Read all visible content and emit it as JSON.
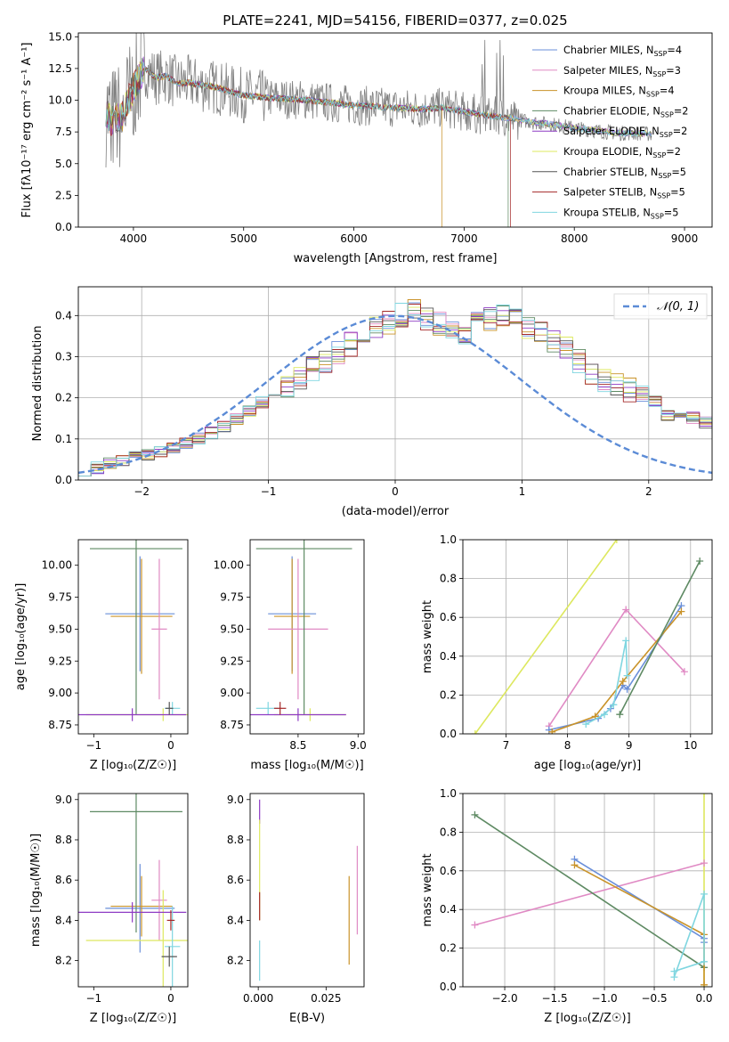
{
  "figure_title": "PLATE=2241, MJD=54156, FIBERID=0377, z=0.025",
  "series_colors": [
    "#6a8fd9",
    "#e08ac4",
    "#c9932a",
    "#5e8a63",
    "#8e3bc4",
    "#dde85f",
    "#555555",
    "#a52a2a",
    "#7fd6e0"
  ],
  "chart_data": [
    {
      "id": "spectrum",
      "type": "line",
      "title": "PLATE=2241, MJD=54156, FIBERID=0377, z=0.025",
      "xlabel": "wavelength [Angstrom, rest frame]",
      "ylabel": "Flux [fλ10⁻¹⁷ erg cm⁻² s⁻¹ A⁻¹]",
      "xlim": [
        3500,
        9250
      ],
      "ylim": [
        0,
        15.3
      ],
      "xticks": [
        4000,
        5000,
        6000,
        7000,
        8000,
        9000
      ],
      "yticks": [
        0.0,
        2.5,
        5.0,
        7.5,
        10.0,
        12.5,
        15.0
      ],
      "grid": false,
      "legend": "top-right",
      "data_color": "#808080",
      "legend_entries": [
        {
          "label": "Chabrier MILES, N",
          "sub": "SSP",
          "suffix": "=4",
          "color": "#6a8fd9"
        },
        {
          "label": "Salpeter MILES, N",
          "sub": "SSP",
          "suffix": "=3",
          "color": "#e08ac4"
        },
        {
          "label": "Kroupa MILES, N",
          "sub": "SSP",
          "suffix": "=4",
          "color": "#c9932a"
        },
        {
          "label": "Chabrier ELODIE, N",
          "sub": "SSP",
          "suffix": "=2",
          "color": "#5e8a63"
        },
        {
          "label": "Salpeter ELODIE, N",
          "sub": "SSP",
          "suffix": "=2",
          "color": "#8e3bc4"
        },
        {
          "label": "Kroupa ELODIE, N",
          "sub": "SSP",
          "suffix": "=2",
          "color": "#dde85f"
        },
        {
          "label": "Chabrier STELIB, N",
          "sub": "SSP",
          "suffix": "=5",
          "color": "#555555"
        },
        {
          "label": "Salpeter STELIB, N",
          "sub": "SSP",
          "suffix": "=5",
          "color": "#a52a2a"
        },
        {
          "label": "Kroupa STELIB, N",
          "sub": "SSP",
          "suffix": "=5",
          "color": "#7fd6e0"
        }
      ],
      "model_continuum": [
        [
          3750,
          9.2
        ],
        [
          3800,
          8.4
        ],
        [
          3900,
          8.8
        ],
        [
          4000,
          11.0
        ],
        [
          4100,
          12.5
        ],
        [
          4200,
          11.8
        ],
        [
          4300,
          11.9
        ],
        [
          4400,
          11.3
        ],
        [
          4500,
          11.4
        ],
        [
          4600,
          11.2
        ],
        [
          4700,
          11.1
        ],
        [
          4800,
          10.9
        ],
        [
          4900,
          10.6
        ],
        [
          5000,
          10.4
        ],
        [
          5200,
          10.2
        ],
        [
          5400,
          10.1
        ],
        [
          5600,
          10.0
        ],
        [
          5800,
          9.8
        ],
        [
          6000,
          9.6
        ],
        [
          6200,
          9.5
        ],
        [
          6400,
          9.4
        ],
        [
          6600,
          9.3
        ],
        [
          6800,
          9.4
        ],
        [
          7000,
          9.1
        ],
        [
          7200,
          8.8
        ],
        [
          7400,
          8.6
        ],
        [
          7600,
          8.3
        ],
        [
          7800,
          8.1
        ],
        [
          8000,
          7.8
        ],
        [
          8200,
          7.6
        ],
        [
          8400,
          7.4
        ],
        [
          8600,
          7.4
        ],
        [
          8700,
          7.3
        ]
      ],
      "model_cutoffs": [
        {
          "color": "#c9932a",
          "x": 6800
        },
        {
          "color": "#5e8a63",
          "x": 7400
        },
        {
          "color": "#a52a2a",
          "x": 7420
        }
      ]
    },
    {
      "id": "residuals",
      "type": "histogram",
      "xlabel": "(data-model)/error",
      "ylabel": "Normed distribution",
      "xlim": [
        -2.5,
        2.5
      ],
      "ylim": [
        0,
        0.47
      ],
      "xticks": [
        -2,
        -1,
        0,
        1,
        2
      ],
      "yticks": [
        0.0,
        0.1,
        0.2,
        0.3,
        0.4
      ],
      "grid": true,
      "legend": "top-right",
      "gaussian_label": "𝒩(0, 1)",
      "gaussian_color": "#5b8bd6",
      "bin_width": 0.1,
      "base_values": [
        0.025,
        0.03,
        0.04,
        0.05,
        0.055,
        0.06,
        0.07,
        0.08,
        0.09,
        0.1,
        0.115,
        0.13,
        0.15,
        0.17,
        0.19,
        0.21,
        0.23,
        0.25,
        0.27,
        0.29,
        0.31,
        0.33,
        0.35,
        0.37,
        0.385,
        0.4,
        0.41,
        0.39,
        0.38,
        0.37,
        0.36,
        0.4,
        0.39,
        0.4,
        0.39,
        0.37,
        0.36,
        0.34,
        0.32,
        0.29,
        0.26,
        0.24,
        0.23,
        0.22,
        0.21,
        0.19,
        0.16,
        0.155,
        0.15,
        0.14,
        0.13,
        0.12,
        0.1,
        0.09,
        0.08,
        0.07,
        0.06,
        0.05,
        0.035,
        0.03
      ]
    },
    {
      "id": "z_age",
      "type": "scatter",
      "xlabel": "Z [log₁₀(Z/Z☉)]",
      "ylabel": "age  [log₁₀(age/yr)]",
      "xlim": [
        -1.2,
        0.22
      ],
      "ylim": [
        8.68,
        10.2
      ],
      "xticks": [
        -1,
        0
      ],
      "yticks": [
        8.75,
        9.0,
        9.25,
        9.5,
        9.75,
        10.0
      ],
      "grid": false,
      "crosses": [
        {
          "c": "#6a8fd9",
          "x": -0.4,
          "y": 9.62,
          "xe": 0.45,
          "ye": 0.45
        },
        {
          "c": "#c9932a",
          "x": -0.38,
          "y": 9.6,
          "xe": 0.4,
          "ye": 0.45
        },
        {
          "c": "#e08ac4",
          "x": -0.15,
          "y": 9.5,
          "xe": 0.1,
          "ye": 0.55
        },
        {
          "c": "#5e8a63",
          "x": -0.45,
          "y": 10.13,
          "xe": 0.6,
          "ye": 1.3
        },
        {
          "c": "#dde85f",
          "x": -0.1,
          "y": 8.83,
          "xe": 1.0,
          "ye": 0.05
        },
        {
          "c": "#7fd6e0",
          "x": 0.02,
          "y": 8.88,
          "xe": 0.1,
          "ye": 0.05
        },
        {
          "c": "#8e3bc4",
          "x": -0.5,
          "y": 8.83,
          "xe": 0.7,
          "ye": 0.05
        },
        {
          "c": "#555555",
          "x": -0.02,
          "y": 8.88,
          "xe": 0.05,
          "ye": 0.05
        }
      ]
    },
    {
      "id": "mass_age",
      "type": "scatter",
      "xlabel": "mass [log₁₀(M/M☉)]",
      "ylabel": "",
      "xlim": [
        8.1,
        9.05
      ],
      "ylim": [
        8.68,
        10.2
      ],
      "xticks": [
        8.5,
        9.0
      ],
      "yticks": [
        8.75,
        9.0,
        9.25,
        9.5,
        9.75,
        10.0
      ],
      "grid": false,
      "crosses": [
        {
          "c": "#6a8fd9",
          "x": 8.45,
          "y": 9.62,
          "xe": 0.2,
          "ye": 0.45
        },
        {
          "c": "#c9932a",
          "x": 8.45,
          "y": 9.6,
          "xe": 0.15,
          "ye": 0.45
        },
        {
          "c": "#e08ac4",
          "x": 8.5,
          "y": 9.5,
          "xe": 0.25,
          "ye": 0.55
        },
        {
          "c": "#5e8a63",
          "x": 8.55,
          "y": 10.13,
          "xe": 0.4,
          "ye": 1.3
        },
        {
          "c": "#dde85f",
          "x": 8.6,
          "y": 8.83,
          "xe": 0.3,
          "ye": 0.05
        },
        {
          "c": "#7fd6e0",
          "x": 8.25,
          "y": 8.88,
          "xe": 0.1,
          "ye": 0.05
        },
        {
          "c": "#8e3bc4",
          "x": 8.5,
          "y": 8.83,
          "xe": 0.4,
          "ye": 0.05
        },
        {
          "c": "#a52a2a",
          "x": 8.35,
          "y": 8.88,
          "xe": 0.05,
          "ye": 0.05
        }
      ]
    },
    {
      "id": "age_weight",
      "type": "line",
      "xlabel": "age  [log₁₀(age/yr)]",
      "ylabel": "mass weight",
      "xlim": [
        6.3,
        10.35
      ],
      "ylim": [
        0,
        1.0
      ],
      "xticks": [
        7,
        8,
        9,
        10
      ],
      "yticks": [
        0.0,
        0.2,
        0.4,
        0.6,
        0.8,
        1.0
      ],
      "grid": true,
      "series": [
        {
          "c": "#dde85f",
          "x": [
            6.5,
            8.8
          ],
          "y": [
            0.0,
            1.0
          ]
        },
        {
          "c": "#e08ac4",
          "x": [
            7.7,
            8.95,
            9.9
          ],
          "y": [
            0.04,
            0.64,
            0.32
          ]
        },
        {
          "c": "#6a8fd9",
          "x": [
            7.7,
            8.5,
            8.7,
            8.9,
            8.97,
            9.85
          ],
          "y": [
            0.02,
            0.08,
            0.13,
            0.25,
            0.23,
            0.66
          ]
        },
        {
          "c": "#c9932a",
          "x": [
            7.75,
            8.45,
            8.9,
            9.85
          ],
          "y": [
            0.01,
            0.09,
            0.27,
            0.63
          ]
        },
        {
          "c": "#5e8a63",
          "x": [
            8.85,
            10.15
          ],
          "y": [
            0.1,
            0.89
          ]
        },
        {
          "c": "#7fd6e0",
          "x": [
            8.3,
            8.6,
            8.75,
            8.95,
            8.97
          ],
          "y": [
            0.05,
            0.1,
            0.15,
            0.48,
            0.3
          ]
        }
      ]
    },
    {
      "id": "z_mass",
      "type": "scatter",
      "xlabel": "Z [log₁₀(Z/Z☉)]",
      "ylabel": "mass [log₁₀(M/M☉)]",
      "xlim": [
        -1.2,
        0.22
      ],
      "ylim": [
        8.07,
        9.03
      ],
      "xticks": [
        -1,
        0
      ],
      "yticks": [
        8.2,
        8.4,
        8.6,
        8.8,
        9.0
      ],
      "grid": false,
      "crosses": [
        {
          "c": "#6a8fd9",
          "x": -0.4,
          "y": 8.46,
          "xe": 0.45,
          "ye": 0.22
        },
        {
          "c": "#c9932a",
          "x": -0.38,
          "y": 8.47,
          "xe": 0.4,
          "ye": 0.15
        },
        {
          "c": "#e08ac4",
          "x": -0.15,
          "y": 8.5,
          "xe": 0.1,
          "ye": 0.2
        },
        {
          "c": "#5e8a63",
          "x": -0.45,
          "y": 8.94,
          "xe": 0.6,
          "ye": 0.6
        },
        {
          "c": "#dde85f",
          "x": -0.1,
          "y": 8.3,
          "xe": 1.0,
          "ye": 0.25
        },
        {
          "c": "#8e3bc4",
          "x": -0.5,
          "y": 8.44,
          "xe": 0.7,
          "ye": 0.05
        },
        {
          "c": "#7fd6e0",
          "x": 0.02,
          "y": 8.27,
          "xe": 0.1,
          "ye": 0.2
        },
        {
          "c": "#555555",
          "x": -0.02,
          "y": 8.22,
          "xe": 0.1,
          "ye": 0.05
        },
        {
          "c": "#a52a2a",
          "x": 0.0,
          "y": 8.4,
          "xe": 0.05,
          "ye": 0.05
        }
      ]
    },
    {
      "id": "ebv_mass",
      "type": "scatter",
      "xlabel": "E(B-V)",
      "ylabel": "",
      "xlim": [
        -0.003,
        0.039
      ],
      "ylim": [
        8.07,
        9.03
      ],
      "xticks": [
        0.0,
        0.025
      ],
      "yticks": [
        8.2,
        8.4,
        8.6,
        8.8,
        9.0
      ],
      "grid": false,
      "crosses": [
        {
          "c": "#8e3bc4",
          "x": 0.0005,
          "y": 8.94,
          "xe": 0,
          "ye": 0.06
        },
        {
          "c": "#dde85f",
          "x": 0.0005,
          "y": 8.65,
          "xe": 0,
          "ye": 0.25
        },
        {
          "c": "#a52a2a",
          "x": 0.0005,
          "y": 8.47,
          "xe": 0,
          "ye": 0.07
        },
        {
          "c": "#7fd6e0",
          "x": 0.0005,
          "y": 8.2,
          "xe": 0,
          "ye": 0.1
        },
        {
          "c": "#e08ac4",
          "x": 0.0365,
          "y": 8.55,
          "xe": 0,
          "ye": 0.22
        },
        {
          "c": "#c9932a",
          "x": 0.0335,
          "y": 8.4,
          "xe": 0,
          "ye": 0.22
        }
      ]
    },
    {
      "id": "z_weight",
      "type": "line",
      "xlabel": "Z [log₁₀(Z/Z☉)]",
      "ylabel": "mass weight",
      "xlim": [
        -2.42,
        0.08
      ],
      "ylim": [
        0,
        1.0
      ],
      "xticks": [
        -2.0,
        -1.5,
        -1.0,
        -0.5,
        0.0
      ],
      "yticks": [
        0.0,
        0.2,
        0.4,
        0.6,
        0.8,
        1.0
      ],
      "grid": true,
      "series": [
        {
          "c": "#dde85f",
          "x": [
            0.0,
            0.0
          ],
          "y": [
            0.0,
            1.0
          ]
        },
        {
          "c": "#e08ac4",
          "x": [
            -2.3,
            0.0
          ],
          "y": [
            0.32,
            0.64
          ]
        },
        {
          "c": "#5e8a63",
          "x": [
            -2.3,
            0.0
          ],
          "y": [
            0.89,
            0.1
          ]
        },
        {
          "c": "#6a8fd9",
          "x": [
            -1.3,
            0.0,
            0.0
          ],
          "y": [
            0.66,
            0.25,
            0.23
          ]
        },
        {
          "c": "#c9932a",
          "x": [
            -1.3,
            0.0,
            0.0
          ],
          "y": [
            0.63,
            0.27,
            0.01
          ]
        },
        {
          "c": "#7fd6e0",
          "x": [
            -0.3,
            0.0,
            0.0,
            -0.3
          ],
          "y": [
            0.05,
            0.48,
            0.13,
            0.08
          ]
        }
      ]
    }
  ]
}
